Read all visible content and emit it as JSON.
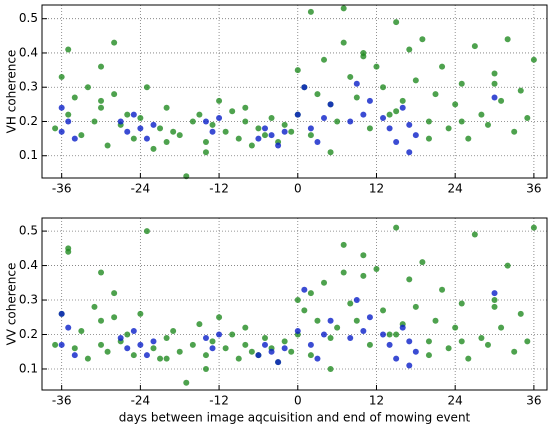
{
  "chart_data": [
    {
      "type": "scatter",
      "ylabel": "VH coherence",
      "xlim": [
        -39,
        38
      ],
      "ylim": [
        0.035,
        0.54
      ],
      "xticks": [
        -36,
        -24,
        -12,
        0,
        12,
        24,
        36
      ],
      "yticks": [
        0.1,
        0.2,
        0.3,
        0.4,
        0.5
      ],
      "grid": true,
      "alpha": 0.8,
      "series": [
        {
          "color": "#228b22",
          "x": [
            -37,
            -36,
            -35,
            -35,
            -34,
            -33,
            -32,
            -31,
            -30,
            -30,
            -29,
            -28,
            -27,
            -26,
            -25,
            -24,
            -23,
            -22,
            -21,
            -20,
            -19,
            -18,
            -17,
            -16,
            -15,
            -14,
            -13,
            -12,
            -11,
            -10,
            -9,
            -8,
            -7,
            -6,
            -5,
            -4,
            -3,
            -2,
            -1,
            0,
            0,
            1,
            2,
            2,
            3,
            4,
            5,
            6,
            7,
            7,
            8,
            9,
            10,
            11,
            12,
            13,
            14,
            15,
            16,
            17,
            18,
            19,
            20,
            21,
            22,
            23,
            24,
            25,
            26,
            27,
            28,
            29,
            30,
            31,
            32,
            33,
            34,
            35,
            36,
            -30,
            -20,
            -8,
            5,
            10,
            20,
            30,
            -28,
            -14,
            15,
            25
          ],
          "values": [
            0.18,
            0.33,
            0.41,
            0.22,
            0.27,
            0.16,
            0.3,
            0.2,
            0.24,
            0.36,
            0.13,
            0.43,
            0.19,
            0.22,
            0.15,
            0.21,
            0.3,
            0.12,
            0.18,
            0.24,
            0.17,
            0.16,
            0.04,
            0.2,
            0.22,
            0.14,
            0.19,
            0.26,
            0.17,
            0.23,
            0.15,
            0.2,
            0.13,
            0.18,
            0.16,
            0.21,
            0.14,
            0.19,
            0.17,
            0.35,
            0.22,
            0.3,
            0.52,
            0.16,
            0.28,
            0.38,
            0.25,
            0.2,
            0.53,
            0.43,
            0.33,
            0.27,
            0.39,
            0.18,
            0.36,
            0.3,
            0.22,
            0.49,
            0.26,
            0.41,
            0.32,
            0.44,
            0.2,
            0.28,
            0.36,
            0.18,
            0.25,
            0.31,
            0.15,
            0.42,
            0.22,
            0.19,
            0.34,
            0.26,
            0.44,
            0.17,
            0.29,
            0.21,
            0.38,
            0.26,
            0.14,
            0.24,
            0.11,
            0.4,
            0.15,
            0.31,
            0.28,
            0.11,
            0.23,
            0.2
          ]
        },
        {
          "color": "#0a1fc8",
          "x": [
            -36,
            -36,
            -35,
            -34,
            -27,
            -26,
            -25,
            -24,
            -23,
            -22,
            -14,
            -13,
            -12,
            -6,
            -5,
            -4,
            -3,
            -2,
            0,
            1,
            2,
            3,
            4,
            5,
            8,
            9,
            10,
            11,
            13,
            14,
            15,
            16,
            17,
            17,
            18,
            30
          ],
          "values": [
            0.24,
            0.17,
            0.2,
            0.15,
            0.2,
            0.17,
            0.22,
            0.18,
            0.15,
            0.19,
            0.2,
            0.17,
            0.21,
            0.15,
            0.18,
            0.16,
            0.13,
            0.17,
            0.22,
            0.3,
            0.18,
            0.14,
            0.21,
            0.25,
            0.2,
            0.31,
            0.22,
            0.26,
            0.21,
            0.18,
            0.14,
            0.24,
            0.11,
            0.19,
            0.16,
            0.27
          ]
        }
      ]
    },
    {
      "type": "scatter",
      "ylabel": "VV coherence",
      "xlabel": "days between image aqcuisition and end of mowing event",
      "xlim": [
        -39,
        38
      ],
      "ylim": [
        0.039,
        0.538
      ],
      "xticks": [
        -36,
        -24,
        -12,
        0,
        12,
        24,
        36
      ],
      "yticks": [
        0.1,
        0.2,
        0.3,
        0.4,
        0.5
      ],
      "grid": true,
      "alpha": 0.8,
      "series": [
        {
          "color": "#228b22",
          "x": [
            -37,
            -36,
            -35,
            -35,
            -34,
            -33,
            -32,
            -31,
            -30,
            -30,
            -29,
            -28,
            -27,
            -26,
            -25,
            -24,
            -23,
            -22,
            -21,
            -20,
            -19,
            -18,
            -17,
            -16,
            -15,
            -14,
            -13,
            -12,
            -11,
            -10,
            -9,
            -8,
            -7,
            -6,
            -5,
            -4,
            -3,
            -2,
            -1,
            0,
            0,
            1,
            2,
            2,
            3,
            4,
            5,
            6,
            7,
            7,
            8,
            9,
            10,
            11,
            12,
            13,
            14,
            15,
            16,
            17,
            18,
            19,
            20,
            21,
            22,
            23,
            24,
            25,
            26,
            27,
            28,
            29,
            30,
            31,
            32,
            33,
            34,
            35,
            36,
            -30,
            -20,
            -8,
            5,
            10,
            20,
            30,
            -28,
            -14,
            15,
            25
          ],
          "values": [
            0.17,
            0.26,
            0.44,
            0.45,
            0.16,
            0.21,
            0.13,
            0.28,
            0.17,
            0.38,
            0.15,
            0.32,
            0.18,
            0.2,
            0.14,
            0.26,
            0.5,
            0.16,
            0.13,
            0.19,
            0.21,
            0.15,
            0.06,
            0.17,
            0.23,
            0.14,
            0.18,
            0.25,
            0.16,
            0.2,
            0.13,
            0.17,
            0.15,
            0.14,
            0.19,
            0.16,
            0.12,
            0.18,
            0.15,
            0.3,
            0.2,
            0.27,
            0.32,
            0.14,
            0.24,
            0.35,
            0.19,
            0.22,
            0.46,
            0.38,
            0.29,
            0.24,
            0.43,
            0.17,
            0.39,
            0.27,
            0.2,
            0.51,
            0.23,
            0.36,
            0.28,
            0.41,
            0.18,
            0.24,
            0.33,
            0.16,
            0.22,
            0.29,
            0.13,
            0.49,
            0.19,
            0.17,
            0.3,
            0.22,
            0.4,
            0.15,
            0.26,
            0.18,
            0.51,
            0.24,
            0.13,
            0.22,
            0.1,
            0.37,
            0.14,
            0.28,
            0.25,
            0.1,
            0.2,
            0.18
          ]
        },
        {
          "color": "#0a1fc8",
          "x": [
            -36,
            -36,
            -35,
            -34,
            -27,
            -26,
            -25,
            -24,
            -23,
            -22,
            -14,
            -13,
            -12,
            -6,
            -5,
            -4,
            -3,
            -2,
            0,
            1,
            2,
            3,
            4,
            5,
            8,
            9,
            10,
            11,
            13,
            14,
            15,
            16,
            17,
            17,
            18,
            30
          ],
          "values": [
            0.26,
            0.17,
            0.22,
            0.14,
            0.19,
            0.16,
            0.21,
            0.17,
            0.14,
            0.18,
            0.19,
            0.16,
            0.2,
            0.14,
            0.17,
            0.15,
            0.12,
            0.16,
            0.21,
            0.33,
            0.17,
            0.13,
            0.2,
            0.24,
            0.19,
            0.3,
            0.21,
            0.25,
            0.2,
            0.17,
            0.13,
            0.22,
            0.11,
            0.18,
            0.15,
            0.32
          ]
        }
      ]
    }
  ]
}
